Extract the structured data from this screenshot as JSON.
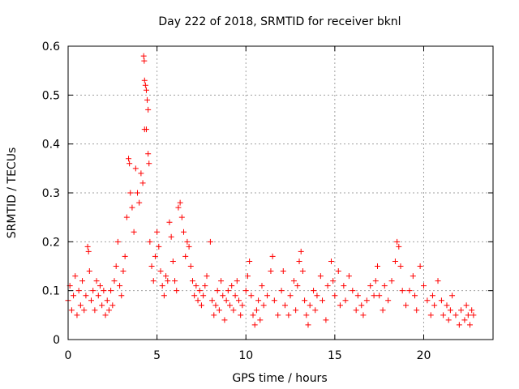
{
  "chart_data": {
    "type": "scatter",
    "title": "Day 222 of 2018, SRMTID for receiver bknl",
    "xlabel": "GPS time / hours",
    "ylabel": "SRMTID / TECUs",
    "xlim": [
      0,
      23.9
    ],
    "ylim": [
      0,
      0.6
    ],
    "xticks": [
      "0",
      "5",
      "10",
      "15",
      "20"
    ],
    "yticks": [
      "0",
      "0.1",
      "0.2",
      "0.3",
      "0.4",
      "0.5",
      "0.6"
    ],
    "grid": true,
    "marker": "+",
    "color": "#ff0000",
    "series": [
      {
        "name": "SRMTID",
        "points": [
          [
            0.0,
            0.08
          ],
          [
            0.1,
            0.11
          ],
          [
            0.2,
            0.06
          ],
          [
            0.3,
            0.09
          ],
          [
            0.4,
            0.13
          ],
          [
            0.5,
            0.05
          ],
          [
            0.6,
            0.1
          ],
          [
            0.7,
            0.07
          ],
          [
            0.8,
            0.12
          ],
          [
            0.9,
            0.06
          ],
          [
            1.0,
            0.09
          ],
          [
            1.1,
            0.19
          ],
          [
            1.15,
            0.18
          ],
          [
            1.2,
            0.14
          ],
          [
            1.3,
            0.08
          ],
          [
            1.4,
            0.1
          ],
          [
            1.5,
            0.06
          ],
          [
            1.6,
            0.12
          ],
          [
            1.7,
            0.09
          ],
          [
            1.8,
            0.11
          ],
          [
            1.9,
            0.07
          ],
          [
            2.0,
            0.1
          ],
          [
            2.1,
            0.05
          ],
          [
            2.2,
            0.08
          ],
          [
            2.3,
            0.06
          ],
          [
            2.4,
            0.1
          ],
          [
            2.5,
            0.07
          ],
          [
            2.6,
            0.12
          ],
          [
            2.7,
            0.15
          ],
          [
            2.8,
            0.2
          ],
          [
            2.9,
            0.11
          ],
          [
            3.0,
            0.09
          ],
          [
            3.1,
            0.14
          ],
          [
            3.2,
            0.17
          ],
          [
            3.3,
            0.25
          ],
          [
            3.4,
            0.37
          ],
          [
            3.45,
            0.36
          ],
          [
            3.5,
            0.3
          ],
          [
            3.6,
            0.27
          ],
          [
            3.7,
            0.22
          ],
          [
            3.8,
            0.35
          ],
          [
            3.9,
            0.3
          ],
          [
            4.0,
            0.28
          ],
          [
            4.1,
            0.34
          ],
          [
            4.2,
            0.32
          ],
          [
            4.25,
            0.58
          ],
          [
            4.28,
            0.57
          ],
          [
            4.3,
            0.53
          ],
          [
            4.35,
            0.52
          ],
          [
            4.4,
            0.51
          ],
          [
            4.45,
            0.49
          ],
          [
            4.5,
            0.47
          ],
          [
            4.3,
            0.43
          ],
          [
            4.4,
            0.43
          ],
          [
            4.5,
            0.38
          ],
          [
            4.55,
            0.36
          ],
          [
            4.6,
            0.2
          ],
          [
            4.7,
            0.15
          ],
          [
            4.8,
            0.12
          ],
          [
            4.9,
            0.17
          ],
          [
            5.0,
            0.22
          ],
          [
            5.1,
            0.19
          ],
          [
            5.2,
            0.14
          ],
          [
            5.3,
            0.11
          ],
          [
            5.4,
            0.09
          ],
          [
            5.5,
            0.13
          ],
          [
            5.6,
            0.12
          ],
          [
            5.7,
            0.24
          ],
          [
            5.8,
            0.21
          ],
          [
            5.9,
            0.16
          ],
          [
            6.0,
            0.12
          ],
          [
            6.1,
            0.1
          ],
          [
            6.2,
            0.27
          ],
          [
            6.3,
            0.28
          ],
          [
            6.4,
            0.25
          ],
          [
            6.5,
            0.22
          ],
          [
            6.6,
            0.17
          ],
          [
            6.7,
            0.2
          ],
          [
            6.8,
            0.19
          ],
          [
            6.9,
            0.15
          ],
          [
            7.0,
            0.12
          ],
          [
            7.1,
            0.09
          ],
          [
            7.2,
            0.11
          ],
          [
            7.3,
            0.08
          ],
          [
            7.4,
            0.1
          ],
          [
            7.5,
            0.07
          ],
          [
            7.6,
            0.09
          ],
          [
            7.7,
            0.11
          ],
          [
            7.8,
            0.13
          ],
          [
            8.0,
            0.2
          ],
          [
            8.1,
            0.08
          ],
          [
            8.2,
            0.05
          ],
          [
            8.3,
            0.07
          ],
          [
            8.4,
            0.1
          ],
          [
            8.5,
            0.06
          ],
          [
            8.6,
            0.12
          ],
          [
            8.7,
            0.09
          ],
          [
            8.8,
            0.04
          ],
          [
            8.9,
            0.08
          ],
          [
            9.0,
            0.1
          ],
          [
            9.1,
            0.07
          ],
          [
            9.2,
            0.11
          ],
          [
            9.3,
            0.06
          ],
          [
            9.4,
            0.09
          ],
          [
            9.5,
            0.12
          ],
          [
            9.6,
            0.08
          ],
          [
            9.7,
            0.05
          ],
          [
            9.8,
            0.07
          ],
          [
            10.0,
            0.1
          ],
          [
            10.1,
            0.13
          ],
          [
            10.2,
            0.16
          ],
          [
            10.3,
            0.09
          ],
          [
            10.4,
            0.05
          ],
          [
            10.5,
            0.03
          ],
          [
            10.6,
            0.06
          ],
          [
            10.7,
            0.08
          ],
          [
            10.8,
            0.04
          ],
          [
            10.9,
            0.11
          ],
          [
            11.0,
            0.07
          ],
          [
            11.2,
            0.09
          ],
          [
            11.4,
            0.14
          ],
          [
            11.5,
            0.17
          ],
          [
            11.6,
            0.08
          ],
          [
            11.8,
            0.05
          ],
          [
            12.0,
            0.1
          ],
          [
            12.1,
            0.14
          ],
          [
            12.2,
            0.07
          ],
          [
            12.4,
            0.05
          ],
          [
            12.5,
            0.09
          ],
          [
            12.7,
            0.12
          ],
          [
            12.8,
            0.06
          ],
          [
            12.9,
            0.11
          ],
          [
            13.0,
            0.16
          ],
          [
            13.1,
            0.18
          ],
          [
            13.2,
            0.14
          ],
          [
            13.3,
            0.08
          ],
          [
            13.4,
            0.05
          ],
          [
            13.5,
            0.03
          ],
          [
            13.6,
            0.07
          ],
          [
            13.8,
            0.1
          ],
          [
            13.9,
            0.06
          ],
          [
            14.0,
            0.09
          ],
          [
            14.2,
            0.13
          ],
          [
            14.3,
            0.08
          ],
          [
            14.5,
            0.04
          ],
          [
            14.6,
            0.11
          ],
          [
            14.8,
            0.16
          ],
          [
            14.9,
            0.12
          ],
          [
            15.0,
            0.09
          ],
          [
            15.2,
            0.14
          ],
          [
            15.3,
            0.07
          ],
          [
            15.5,
            0.11
          ],
          [
            15.6,
            0.08
          ],
          [
            15.8,
            0.13
          ],
          [
            16.0,
            0.1
          ],
          [
            16.2,
            0.06
          ],
          [
            16.3,
            0.09
          ],
          [
            16.5,
            0.07
          ],
          [
            16.6,
            0.05
          ],
          [
            16.8,
            0.08
          ],
          [
            17.0,
            0.11
          ],
          [
            17.2,
            0.09
          ],
          [
            17.3,
            0.12
          ],
          [
            17.4,
            0.15
          ],
          [
            17.5,
            0.09
          ],
          [
            17.7,
            0.06
          ],
          [
            17.8,
            0.11
          ],
          [
            18.0,
            0.08
          ],
          [
            18.2,
            0.12
          ],
          [
            18.4,
            0.16
          ],
          [
            18.5,
            0.2
          ],
          [
            18.6,
            0.19
          ],
          [
            18.7,
            0.15
          ],
          [
            18.8,
            0.1
          ],
          [
            19.0,
            0.07
          ],
          [
            19.2,
            0.1
          ],
          [
            19.4,
            0.13
          ],
          [
            19.5,
            0.09
          ],
          [
            19.6,
            0.06
          ],
          [
            19.8,
            0.15
          ],
          [
            20.0,
            0.11
          ],
          [
            20.2,
            0.08
          ],
          [
            20.4,
            0.05
          ],
          [
            20.5,
            0.09
          ],
          [
            20.6,
            0.07
          ],
          [
            20.8,
            0.12
          ],
          [
            21.0,
            0.08
          ],
          [
            21.1,
            0.05
          ],
          [
            21.3,
            0.07
          ],
          [
            21.4,
            0.04
          ],
          [
            21.5,
            0.06
          ],
          [
            21.6,
            0.09
          ],
          [
            21.8,
            0.05
          ],
          [
            22.0,
            0.03
          ],
          [
            22.1,
            0.06
          ],
          [
            22.3,
            0.04
          ],
          [
            22.4,
            0.07
          ],
          [
            22.5,
            0.05
          ],
          [
            22.6,
            0.03
          ],
          [
            22.7,
            0.06
          ],
          [
            22.8,
            0.05
          ]
        ]
      }
    ]
  }
}
